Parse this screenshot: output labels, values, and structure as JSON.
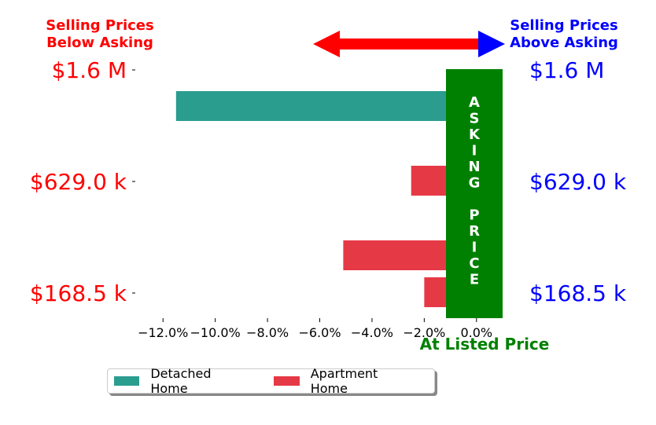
{
  "header": {
    "left_line1": "Selling Prices",
    "left_line2": "Below Asking",
    "right_line1": "Selling Prices",
    "right_line2": "Above Asking"
  },
  "prices": {
    "left": [
      "$1.6 M",
      "$629.0 k",
      "$168.5 k"
    ],
    "right": [
      "$1.6 M",
      "$629.0 k",
      "$168.5 k"
    ]
  },
  "asking_label": [
    "A",
    "S",
    "K",
    "I",
    "N",
    "G",
    "",
    "P",
    "R",
    "I",
    "C",
    "E"
  ],
  "listed_price_label": "At Listed Price",
  "colors": {
    "detached": "#2a9d8f",
    "apartment": "#e63946",
    "below": "#ff0000",
    "above": "#0000ff",
    "asking": "#008000"
  },
  "legend": {
    "detached": "Detached Home",
    "apartment": "Apartment Home"
  },
  "chart_data": {
    "type": "bar",
    "orientation": "horizontal",
    "xlim": [
      -13.0,
      1.0
    ],
    "x_ticks": [
      -12,
      -10,
      -8,
      -6,
      -4,
      -2,
      0
    ],
    "x_tick_labels": [
      "−12.0%",
      "−10.0%",
      "−8.0%",
      "−6.0%",
      "−4.0%",
      "−2.0%",
      "0.0%"
    ],
    "categories": [
      "$1.6 M",
      "$629.0 k",
      "$168.5 k"
    ],
    "series": [
      {
        "name": "Detached Home",
        "values": [
          -11.5,
          1.0,
          -1.0
        ]
      },
      {
        "name": "Apartment Home",
        "values": [
          -2.5,
          -5.1,
          -2.0
        ]
      }
    ]
  }
}
